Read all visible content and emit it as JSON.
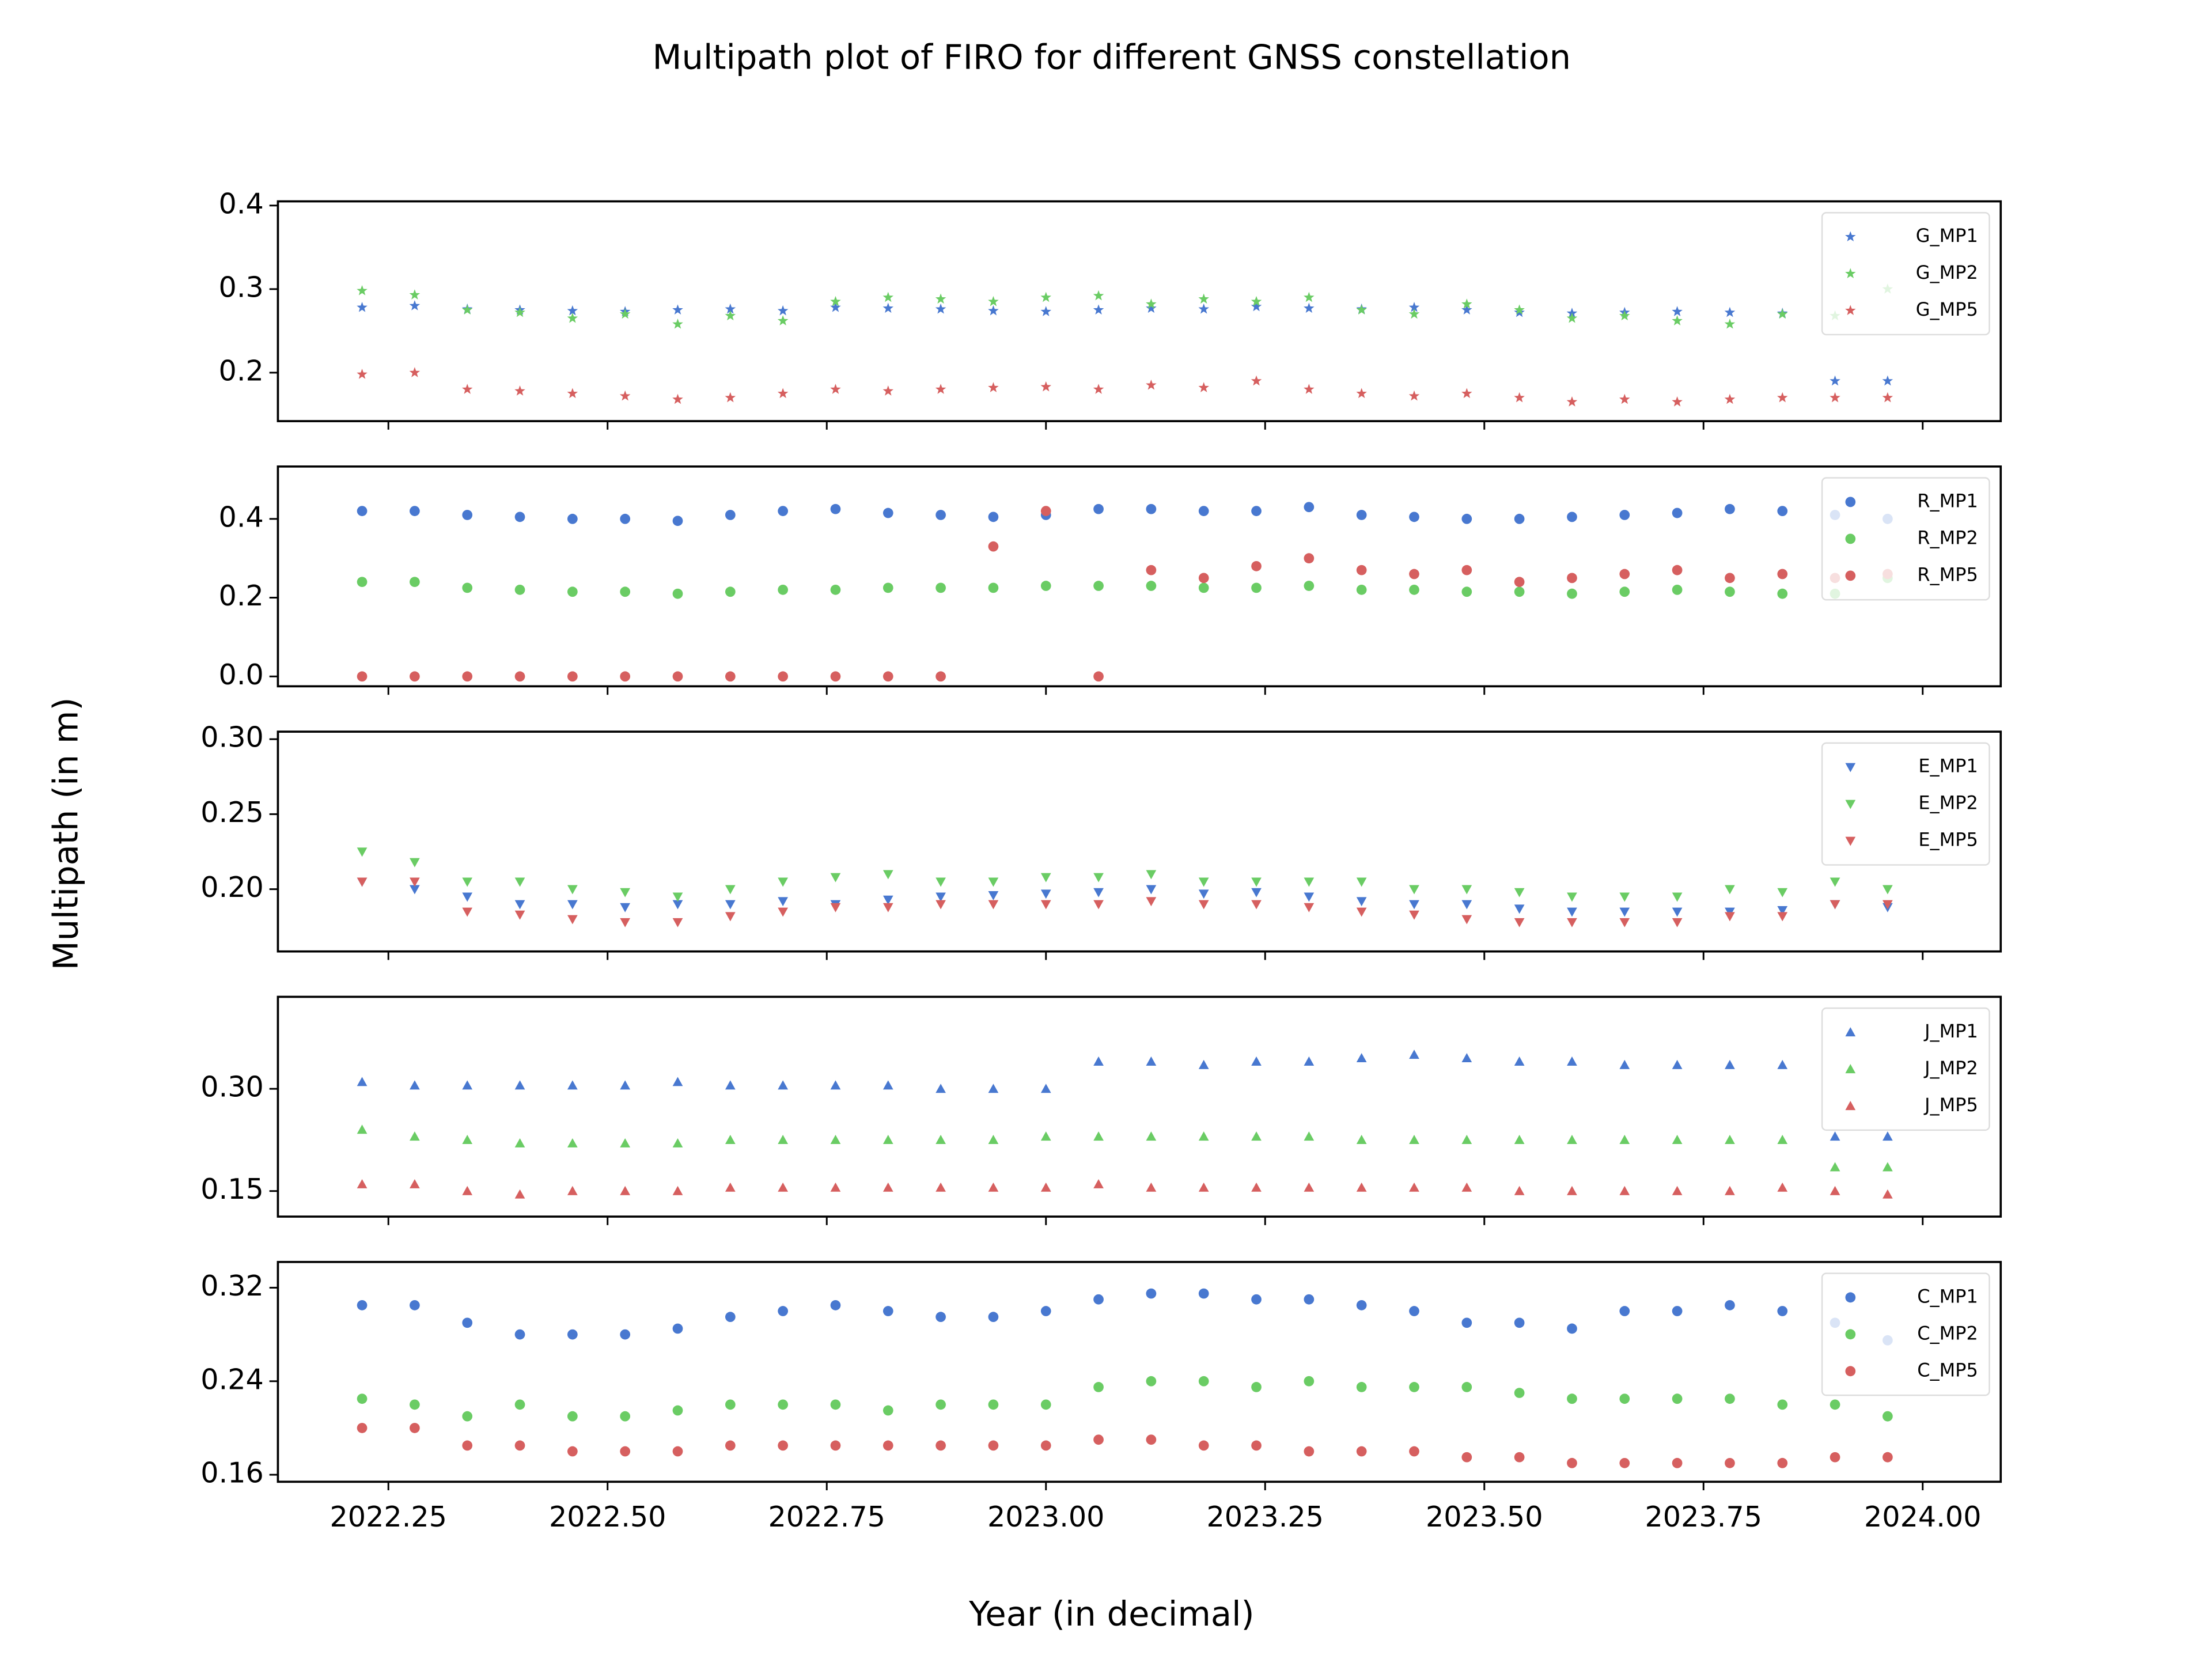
{
  "figure": {
    "title": "Multipath plot of FIRO for different GNSS constellation",
    "x_label": "Year (in decimal)",
    "y_label": "Multipath (in m)"
  },
  "chart_data": [
    {
      "type": "scatter",
      "legend": "upper right",
      "xlim": [
        2022.124,
        2024.089
      ],
      "ylim": [
        0.142,
        0.405
      ],
      "yticks": [
        0.2,
        0.3,
        0.4
      ],
      "x": [
        2022.22,
        2022.28,
        2022.34,
        2022.4,
        2022.46,
        2022.52,
        2022.58,
        2022.64,
        2022.7,
        2022.76,
        2022.82,
        2022.88,
        2022.94,
        2023.0,
        2023.06,
        2023.12,
        2023.18,
        2023.24,
        2023.3,
        2023.36,
        2023.42,
        2023.48,
        2023.54,
        2023.6,
        2023.66,
        2023.72,
        2023.78,
        2023.84,
        2023.9,
        2023.96
      ],
      "series": [
        {
          "name": "G_MP1",
          "color": "#4878d0",
          "marker": "*",
          "values": [
            0.278,
            0.28,
            0.276,
            0.275,
            0.274,
            0.273,
            0.275,
            0.276,
            0.274,
            0.278,
            0.277,
            0.276,
            0.274,
            0.273,
            0.275,
            0.277,
            0.276,
            0.279,
            0.277,
            0.276,
            0.278,
            0.275,
            0.272,
            0.271,
            0.272,
            0.273,
            0.272,
            0.271,
            0.19,
            0.19
          ]
        },
        {
          "name": "G_MP2",
          "color": "#6acc64",
          "marker": "*",
          "values": [
            0.298,
            0.293,
            0.275,
            0.272,
            0.265,
            0.27,
            0.258,
            0.268,
            0.262,
            0.285,
            0.29,
            0.288,
            0.285,
            0.29,
            0.292,
            0.282,
            0.288,
            0.285,
            0.29,
            0.275,
            0.27,
            0.282,
            0.275,
            0.265,
            0.268,
            0.262,
            0.258,
            0.27,
            0.268,
            0.3
          ]
        },
        {
          "name": "G_MP5",
          "color": "#d65f5f",
          "marker": "*",
          "values": [
            0.198,
            0.2,
            0.18,
            0.178,
            0.175,
            0.172,
            0.168,
            0.17,
            0.175,
            0.18,
            0.178,
            0.18,
            0.182,
            0.183,
            0.18,
            0.185,
            0.182,
            0.19,
            0.18,
            0.175,
            0.172,
            0.175,
            0.17,
            0.165,
            0.168,
            0.165,
            0.168,
            0.17,
            0.17,
            0.17
          ]
        }
      ]
    },
    {
      "type": "scatter",
      "legend": "upper right",
      "xlim": [
        2022.124,
        2024.089
      ],
      "ylim": [
        -0.025,
        0.533
      ],
      "yticks": [
        {
          "value": 0,
          "label": "0.0"
        },
        0.2,
        0.4
      ],
      "x": [
        2022.22,
        2022.28,
        2022.34,
        2022.4,
        2022.46,
        2022.52,
        2022.58,
        2022.64,
        2022.7,
        2022.76,
        2022.82,
        2022.88,
        2022.94,
        2023.0,
        2023.06,
        2023.12,
        2023.18,
        2023.24,
        2023.3,
        2023.36,
        2023.42,
        2023.48,
        2023.54,
        2023.6,
        2023.66,
        2023.72,
        2023.78,
        2023.84,
        2023.9,
        2023.96
      ],
      "series": [
        {
          "name": "R_MP1",
          "color": "#4878d0",
          "marker": "o",
          "values": [
            0.42,
            0.42,
            0.41,
            0.405,
            0.4,
            0.4,
            0.395,
            0.41,
            0.42,
            0.425,
            0.415,
            0.41,
            0.405,
            0.41,
            0.425,
            0.425,
            0.42,
            0.42,
            0.43,
            0.41,
            0.405,
            0.4,
            0.4,
            0.405,
            0.41,
            0.415,
            0.425,
            0.42,
            0.41,
            0.4
          ]
        },
        {
          "name": "R_MP2",
          "color": "#6acc64",
          "marker": "o",
          "values": [
            0.24,
            0.24,
            0.225,
            0.22,
            0.215,
            0.215,
            0.21,
            0.215,
            0.22,
            0.22,
            0.225,
            0.225,
            0.225,
            0.23,
            0.23,
            0.23,
            0.225,
            0.225,
            0.23,
            0.22,
            0.22,
            0.215,
            0.215,
            0.21,
            0.215,
            0.22,
            0.215,
            0.21,
            0.21,
            0.25
          ]
        },
        {
          "name": "R_MP5",
          "color": "#d65f5f",
          "marker": "o",
          "values": [
            0,
            0,
            0,
            0,
            0,
            0,
            0,
            0,
            0,
            0,
            0,
            0,
            0.33,
            0.42,
            0,
            0.27,
            0.25,
            0.28,
            0.3,
            0.27,
            0.26,
            0.27,
            0.24,
            0.25,
            0.26,
            0.27,
            0.25,
            0.26,
            0.25,
            0.26
          ]
        }
      ]
    },
    {
      "type": "scatter",
      "legend": "upper right",
      "xlim": [
        2022.124,
        2024.089
      ],
      "ylim": [
        0.1585,
        0.305
      ],
      "yticks": [
        {
          "value": 0.2,
          "label": "0.20"
        },
        0.25,
        {
          "value": 0.3,
          "label": "0.30"
        }
      ],
      "x": [
        2022.22,
        2022.28,
        2022.34,
        2022.4,
        2022.46,
        2022.52,
        2022.58,
        2022.64,
        2022.7,
        2022.76,
        2022.82,
        2022.88,
        2022.94,
        2023.0,
        2023.06,
        2023.12,
        2023.18,
        2023.24,
        2023.3,
        2023.36,
        2023.42,
        2023.48,
        2023.54,
        2023.6,
        2023.66,
        2023.72,
        2023.78,
        2023.84,
        2023.9,
        2023.96
      ],
      "series": [
        {
          "name": "E_MP1",
          "color": "#4878d0",
          "marker": "v",
          "values": [
            0.205,
            0.2,
            0.195,
            0.19,
            0.19,
            0.188,
            0.19,
            0.19,
            0.192,
            0.19,
            0.193,
            0.195,
            0.196,
            0.197,
            0.198,
            0.2,
            0.197,
            0.198,
            0.195,
            0.192,
            0.19,
            0.19,
            0.187,
            0.185,
            0.185,
            0.185,
            0.185,
            0.186,
            0.19,
            0.188
          ]
        },
        {
          "name": "E_MP2",
          "color": "#6acc64",
          "marker": "v",
          "values": [
            0.225,
            0.218,
            0.205,
            0.205,
            0.2,
            0.198,
            0.195,
            0.2,
            0.205,
            0.208,
            0.21,
            0.205,
            0.205,
            0.208,
            0.208,
            0.21,
            0.205,
            0.205,
            0.205,
            0.205,
            0.2,
            0.2,
            0.198,
            0.195,
            0.195,
            0.195,
            0.2,
            0.198,
            0.205,
            0.2
          ]
        },
        {
          "name": "E_MP5",
          "color": "#d65f5f",
          "marker": "v",
          "values": [
            0.205,
            0.205,
            0.185,
            0.183,
            0.18,
            0.178,
            0.178,
            0.182,
            0.185,
            0.188,
            0.188,
            0.19,
            0.19,
            0.19,
            0.19,
            0.192,
            0.19,
            0.19,
            0.188,
            0.185,
            0.183,
            0.18,
            0.178,
            0.178,
            0.178,
            0.178,
            0.182,
            0.182,
            0.19,
            0.19
          ]
        }
      ]
    },
    {
      "type": "scatter",
      "legend": "upper right",
      "xlim": [
        2022.124,
        2024.089
      ],
      "ylim": [
        0.1125,
        0.435
      ],
      "yticks": [
        0.15,
        {
          "value": 0.3,
          "label": "0.30"
        }
      ],
      "x": [
        2022.22,
        2022.28,
        2022.34,
        2022.4,
        2022.46,
        2022.52,
        2022.58,
        2022.64,
        2022.7,
        2022.76,
        2022.82,
        2022.88,
        2022.94,
        2023.0,
        2023.06,
        2023.12,
        2023.18,
        2023.24,
        2023.3,
        2023.36,
        2023.42,
        2023.48,
        2023.54,
        2023.6,
        2023.66,
        2023.72,
        2023.78,
        2023.84,
        2023.9,
        2023.96
      ],
      "series": [
        {
          "name": "J_MP1",
          "color": "#4878d0",
          "marker": "^",
          "values": [
            0.31,
            0.305,
            0.305,
            0.305,
            0.305,
            0.305,
            0.31,
            0.305,
            0.305,
            0.305,
            0.305,
            0.3,
            0.3,
            0.3,
            0.34,
            0.34,
            0.335,
            0.34,
            0.34,
            0.345,
            0.35,
            0.345,
            0.34,
            0.34,
            0.335,
            0.335,
            0.335,
            0.335,
            0.23,
            0.23
          ]
        },
        {
          "name": "J_MP2",
          "color": "#6acc64",
          "marker": "^",
          "values": [
            0.24,
            0.23,
            0.225,
            0.22,
            0.22,
            0.22,
            0.22,
            0.225,
            0.225,
            0.225,
            0.225,
            0.225,
            0.225,
            0.23,
            0.23,
            0.23,
            0.23,
            0.23,
            0.23,
            0.225,
            0.225,
            0.225,
            0.225,
            0.225,
            0.225,
            0.225,
            0.225,
            0.225,
            0.185,
            0.185
          ]
        },
        {
          "name": "J_MP5",
          "color": "#d65f5f",
          "marker": "^",
          "values": [
            0.16,
            0.16,
            0.15,
            0.145,
            0.15,
            0.15,
            0.15,
            0.155,
            0.155,
            0.155,
            0.155,
            0.155,
            0.155,
            0.155,
            0.16,
            0.155,
            0.155,
            0.155,
            0.155,
            0.155,
            0.155,
            0.155,
            0.15,
            0.15,
            0.15,
            0.15,
            0.15,
            0.155,
            0.15,
            0.145
          ]
        }
      ]
    },
    {
      "type": "scatter",
      "legend": "upper right",
      "xlim": [
        2022.124,
        2024.089
      ],
      "ylim": [
        0.154,
        0.342
      ],
      "yticks": [
        0.16,
        0.24,
        0.32
      ],
      "xticks": [
        2022.25,
        {
          "value": 2022.5,
          "label": "2022.50"
        },
        2022.75,
        {
          "value": 2023,
          "label": "2023.00"
        },
        2023.25,
        {
          "value": 2023.5,
          "label": "2023.50"
        },
        2023.75,
        {
          "value": 2024,
          "label": "2024.00"
        }
      ],
      "x": [
        2022.22,
        2022.28,
        2022.34,
        2022.4,
        2022.46,
        2022.52,
        2022.58,
        2022.64,
        2022.7,
        2022.76,
        2022.82,
        2022.88,
        2022.94,
        2023.0,
        2023.06,
        2023.12,
        2023.18,
        2023.24,
        2023.3,
        2023.36,
        2023.42,
        2023.48,
        2023.54,
        2023.6,
        2023.66,
        2023.72,
        2023.78,
        2023.84,
        2023.9,
        2023.96
      ],
      "series": [
        {
          "name": "C_MP1",
          "color": "#4878d0",
          "marker": "o",
          "values": [
            0.305,
            0.305,
            0.29,
            0.28,
            0.28,
            0.28,
            0.285,
            0.295,
            0.3,
            0.305,
            0.3,
            0.295,
            0.295,
            0.3,
            0.31,
            0.315,
            0.315,
            0.31,
            0.31,
            0.305,
            0.3,
            0.29,
            0.29,
            0.285,
            0.3,
            0.3,
            0.305,
            0.3,
            0.29,
            0.275
          ]
        },
        {
          "name": "C_MP2",
          "color": "#6acc64",
          "marker": "o",
          "values": [
            0.225,
            0.22,
            0.21,
            0.22,
            0.21,
            0.21,
            0.215,
            0.22,
            0.22,
            0.22,
            0.215,
            0.22,
            0.22,
            0.22,
            0.235,
            0.24,
            0.24,
            0.235,
            0.24,
            0.235,
            0.235,
            0.235,
            0.23,
            0.225,
            0.225,
            0.225,
            0.225,
            0.22,
            0.22,
            0.21
          ]
        },
        {
          "name": "C_MP5",
          "color": "#d65f5f",
          "marker": "o",
          "values": [
            0.2,
            0.2,
            0.185,
            0.185,
            0.18,
            0.18,
            0.18,
            0.185,
            0.185,
            0.185,
            0.185,
            0.185,
            0.185,
            0.185,
            0.19,
            0.19,
            0.185,
            0.185,
            0.18,
            0.18,
            0.18,
            0.175,
            0.175,
            0.17,
            0.17,
            0.17,
            0.17,
            0.17,
            0.175,
            0.175
          ]
        }
      ]
    }
  ]
}
